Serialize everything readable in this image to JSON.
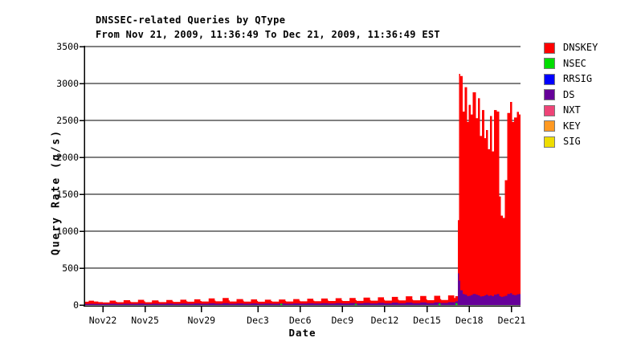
{
  "chart_data": {
    "type": "area",
    "title": "DNSSEC-related Queries by QType",
    "subtitle": "From Nov 21, 2009, 11:36:49 To Dec 21, 2009, 11:36:49 EST",
    "xlabel": "Date",
    "ylabel": "Query Rate (q/s)",
    "ylim": [
      0,
      3500
    ],
    "y_ticks": [
      0,
      500,
      1000,
      1500,
      2000,
      2500,
      3000,
      3500
    ],
    "grid": "horizontal-only",
    "legend_position": "right",
    "x_ticks": [
      {
        "label": "Nov22",
        "pos": 0.0424
      },
      {
        "label": "Nov25",
        "pos": 0.1392
      },
      {
        "label": "Nov29",
        "pos": 0.2685
      },
      {
        "label": "Dec3",
        "pos": 0.3978
      },
      {
        "label": "Dec6",
        "pos": 0.4948
      },
      {
        "label": "Dec9",
        "pos": 0.5917
      },
      {
        "label": "Dec12",
        "pos": 0.6887
      },
      {
        "label": "Dec15",
        "pos": 0.7856
      },
      {
        "label": "Dec18",
        "pos": 0.8827
      },
      {
        "label": "Dec21",
        "pos": 0.9797
      }
    ],
    "legend": [
      {
        "label": "DNSKEY",
        "color": "#ff0000"
      },
      {
        "label": "NSEC",
        "color": "#00dd00"
      },
      {
        "label": "RRSIG",
        "color": "#0000ff"
      },
      {
        "label": "DS",
        "color": "#660099"
      },
      {
        "label": "NXT",
        "color": "#ee4477"
      },
      {
        "label": "KEY",
        "color": "#ff9922"
      },
      {
        "label": "SIG",
        "color": "#eedd00"
      }
    ],
    "zero_value_series": [
      "RRSIG",
      "NXT",
      "KEY",
      "SIG"
    ],
    "samples_columns": [
      "x_fraction_of_range",
      "DNSKEY_qps",
      "DS_qps"
    ],
    "samples": [
      [
        0.0,
        45,
        15
      ],
      [
        0.01,
        58,
        16
      ],
      [
        0.022,
        48,
        15
      ],
      [
        0.032,
        40,
        15
      ],
      [
        0.0424,
        35,
        15
      ],
      [
        0.058,
        60,
        18
      ],
      [
        0.072,
        45,
        15
      ],
      [
        0.0747,
        38,
        15
      ],
      [
        0.09,
        65,
        18
      ],
      [
        0.105,
        48,
        16
      ],
      [
        0.1071,
        40,
        16
      ],
      [
        0.123,
        70,
        20
      ],
      [
        0.137,
        50,
        16
      ],
      [
        0.1394,
        38,
        15
      ],
      [
        0.155,
        62,
        18
      ],
      [
        0.17,
        46,
        15
      ],
      [
        0.1717,
        40,
        16
      ],
      [
        0.188,
        68,
        20
      ],
      [
        0.202,
        50,
        17
      ],
      [
        0.204,
        42,
        16
      ],
      [
        0.22,
        72,
        20
      ],
      [
        0.234,
        52,
        17
      ],
      [
        0.2364,
        45,
        17
      ],
      [
        0.252,
        78,
        22
      ],
      [
        0.266,
        55,
        18
      ],
      [
        0.2687,
        48,
        18
      ],
      [
        0.285,
        90,
        24
      ],
      [
        0.299,
        60,
        19
      ],
      [
        0.301,
        50,
        18
      ],
      [
        0.317,
        95,
        25
      ],
      [
        0.331,
        62,
        19
      ],
      [
        0.3333,
        48,
        18
      ],
      [
        0.349,
        80,
        22
      ],
      [
        0.364,
        58,
        18
      ],
      [
        0.3657,
        46,
        17
      ],
      [
        0.382,
        76,
        22
      ],
      [
        0.396,
        56,
        18
      ],
      [
        0.398,
        45,
        17
      ],
      [
        0.414,
        72,
        20
      ],
      [
        0.428,
        54,
        18
      ],
      [
        0.4303,
        46,
        18
      ],
      [
        0.446,
        75,
        22
      ],
      [
        0.461,
        55,
        18
      ],
      [
        0.4626,
        48,
        18
      ],
      [
        0.479,
        80,
        22
      ],
      [
        0.493,
        58,
        19
      ],
      [
        0.495,
        50,
        19
      ],
      [
        0.511,
        85,
        24
      ],
      [
        0.525,
        60,
        20
      ],
      [
        0.5273,
        52,
        20
      ],
      [
        0.543,
        88,
        25
      ],
      [
        0.558,
        62,
        20
      ],
      [
        0.5596,
        54,
        20
      ],
      [
        0.576,
        92,
        26
      ],
      [
        0.59,
        64,
        21
      ],
      [
        0.5919,
        55,
        21
      ],
      [
        0.608,
        95,
        27
      ],
      [
        0.622,
        66,
        22
      ],
      [
        0.6243,
        56,
        22
      ],
      [
        0.64,
        100,
        28
      ],
      [
        0.655,
        68,
        23
      ],
      [
        0.6566,
        58,
        22
      ],
      [
        0.673,
        105,
        30
      ],
      [
        0.687,
        70,
        24
      ],
      [
        0.6889,
        60,
        23
      ],
      [
        0.705,
        110,
        32
      ],
      [
        0.719,
        72,
        25
      ],
      [
        0.7212,
        62,
        24
      ],
      [
        0.737,
        118,
        34
      ],
      [
        0.752,
        75,
        26
      ],
      [
        0.7536,
        64,
        25
      ],
      [
        0.77,
        122,
        35
      ],
      [
        0.784,
        78,
        27
      ],
      [
        0.7859,
        65,
        26
      ],
      [
        0.802,
        125,
        36
      ],
      [
        0.816,
        80,
        28
      ],
      [
        0.8182,
        68,
        28
      ],
      [
        0.834,
        130,
        38
      ],
      [
        0.848,
        95,
        35
      ],
      [
        0.8505,
        120,
        50
      ],
      [
        0.8564,
        1150,
        430
      ],
      [
        0.8591,
        3130,
        330
      ],
      [
        0.8619,
        3100,
        200
      ],
      [
        0.8674,
        2620,
        150
      ],
      [
        0.872,
        2950,
        140
      ],
      [
        0.8775,
        2480,
        120
      ],
      [
        0.8812,
        2710,
        125
      ],
      [
        0.8858,
        2580,
        135
      ],
      [
        0.8904,
        2880,
        150
      ],
      [
        0.8978,
        2530,
        140
      ],
      [
        0.9024,
        2800,
        130
      ],
      [
        0.907,
        2290,
        115
      ],
      [
        0.9116,
        2640,
        120
      ],
      [
        0.9171,
        2260,
        130
      ],
      [
        0.9208,
        2370,
        140
      ],
      [
        0.9254,
        2110,
        125
      ],
      [
        0.93,
        2560,
        130
      ],
      [
        0.9346,
        2080,
        120
      ],
      [
        0.9392,
        2640,
        140
      ],
      [
        0.9457,
        2620,
        150
      ],
      [
        0.9512,
        1470,
        120
      ],
      [
        0.9549,
        1210,
        110
      ],
      [
        0.9595,
        1180,
        115
      ],
      [
        0.9641,
        1690,
        125
      ],
      [
        0.9696,
        2600,
        150
      ],
      [
        0.9761,
        2750,
        160
      ],
      [
        0.9807,
        2480,
        140
      ],
      [
        0.9853,
        2540,
        135
      ],
      [
        0.9917,
        2615,
        145
      ],
      [
        0.9963,
        2580,
        150
      ],
      [
        1.0,
        2500,
        145
      ]
    ],
    "nsec_blips_columns": [
      "x_fraction_of_range",
      "NSEC_qps"
    ],
    "nsec_blips": [
      [
        0.451,
        18
      ],
      [
        0.622,
        16
      ],
      [
        0.814,
        20
      ],
      [
        0.8527,
        25
      ]
    ],
    "colors": {
      "axis": "#000000",
      "grid": "#000000",
      "background": "#ffffff"
    }
  }
}
